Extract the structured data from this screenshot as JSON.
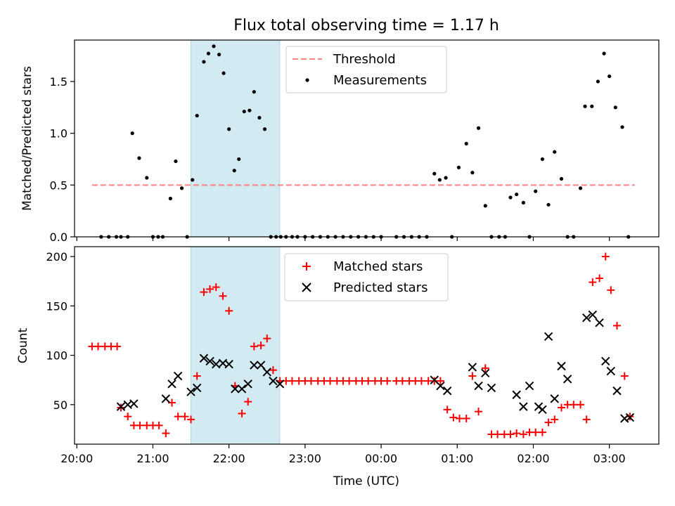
{
  "title": "Flux total observing time = 1.17 h",
  "xlabel": "Time (UTC)",
  "x_tick_labels": [
    "20:00",
    "21:00",
    "22:00",
    "23:00",
    "00:00",
    "01:00",
    "02:00",
    "03:00"
  ],
  "colors": {
    "threshold": "#ff8080",
    "measurement": "#000000",
    "matched": "#ff0000",
    "predicted": "#000000",
    "shade": "#add8e6"
  },
  "chart_data": [
    {
      "type": "scatter",
      "ylabel": "Matched/Predicted stars",
      "ylim": [
        0,
        1.9
      ],
      "y_ticks": [
        0.0,
        0.5,
        1.0,
        1.5
      ],
      "y_tick_labels": [
        "0.0",
        "0.5",
        "1.0",
        "1.5"
      ],
      "x_range_hours": [
        19.97,
        27.65
      ],
      "shaded_span": [
        "21:30",
        "22:40"
      ],
      "legend": {
        "position": "top-center",
        "entries": [
          "Threshold",
          "Measurements"
        ]
      },
      "threshold": {
        "name": "Threshold",
        "value": 0.5,
        "x_start": "20:12",
        "x_end": "27:20",
        "style": "dashed"
      },
      "series": [
        {
          "name": "Measurements",
          "x": [
            20.32,
            20.42,
            20.52,
            20.58,
            20.67,
            20.73,
            20.82,
            20.92,
            21.0,
            21.07,
            21.13,
            21.23,
            21.3,
            21.38,
            21.45,
            21.52,
            21.58,
            21.67,
            21.73,
            21.8,
            21.87,
            21.93,
            22.0,
            22.07,
            22.13,
            22.2,
            22.27,
            22.33,
            22.4,
            22.47,
            22.55,
            22.62,
            22.68,
            22.75,
            22.83,
            22.9,
            23.0,
            23.1,
            23.2,
            23.3,
            23.4,
            23.5,
            23.6,
            23.7,
            23.8,
            23.9,
            24.0,
            24.2,
            24.3,
            24.4,
            24.5,
            24.6,
            24.7,
            24.77,
            24.85,
            24.93,
            25.02,
            25.12,
            25.2,
            25.28,
            25.37,
            25.45,
            25.55,
            25.63,
            25.7,
            25.78,
            25.87,
            25.95,
            26.03,
            26.12,
            26.2,
            26.28,
            26.37,
            26.45,
            26.53,
            26.62,
            26.68,
            26.77,
            26.85,
            26.93,
            27.0,
            27.08,
            27.17,
            27.25
          ],
          "y": [
            0,
            0,
            0,
            0,
            0,
            1.0,
            0.76,
            0.57,
            0,
            0,
            0,
            0.37,
            0.73,
            0.47,
            0,
            0.55,
            1.17,
            1.69,
            1.77,
            1.84,
            1.76,
            1.58,
            1.04,
            0.64,
            0.75,
            1.21,
            1.22,
            1.4,
            1.15,
            1.04,
            0,
            0,
            0,
            0,
            0,
            0,
            0,
            0,
            0,
            0,
            0,
            0,
            0,
            0,
            0,
            0,
            0,
            0,
            0,
            0,
            0,
            0,
            0.61,
            0.55,
            0.57,
            0,
            0.67,
            0.9,
            0.62,
            1.05,
            0.3,
            0,
            0,
            0,
            0.38,
            0.41,
            0.33,
            0,
            0.44,
            0.75,
            0.31,
            0.82,
            0.56,
            0,
            0,
            0.47,
            1.26,
            1.26,
            1.5,
            1.77,
            1.55,
            1.25,
            1.06,
            0
          ]
        }
      ]
    },
    {
      "type": "scatter",
      "ylabel": "Count",
      "ylim": [
        10,
        210
      ],
      "y_ticks": [
        50,
        100,
        150,
        200
      ],
      "y_tick_labels": [
        "50",
        "100",
        "150",
        "200"
      ],
      "legend": {
        "position": "top-center",
        "entries": [
          "Matched stars",
          "Predicted stars"
        ]
      },
      "series": [
        {
          "name": "Matched stars",
          "marker": "+",
          "x": [
            20.2,
            20.28,
            20.37,
            20.45,
            20.53,
            20.58,
            20.67,
            20.75,
            20.83,
            20.92,
            21.0,
            21.08,
            21.17,
            21.25,
            21.33,
            21.42,
            21.5,
            21.58,
            21.67,
            21.75,
            21.83,
            21.92,
            22.0,
            22.08,
            22.17,
            22.25,
            22.33,
            22.42,
            22.5,
            22.58,
            22.67,
            22.75,
            22.83,
            22.92,
            23.0,
            23.08,
            23.17,
            23.25,
            23.33,
            23.42,
            23.5,
            23.58,
            23.67,
            23.75,
            23.83,
            23.92,
            24.0,
            24.08,
            24.2,
            24.28,
            24.37,
            24.45,
            24.53,
            24.62,
            24.7,
            24.78,
            24.87,
            24.95,
            25.03,
            25.12,
            25.2,
            25.28,
            25.37,
            25.45,
            25.53,
            25.62,
            25.7,
            25.78,
            25.87,
            25.95,
            26.03,
            26.12,
            26.2,
            26.28,
            26.37,
            26.45,
            26.53,
            26.62,
            26.7,
            26.78,
            26.87,
            26.95,
            27.02,
            27.1,
            27.2,
            27.27
          ],
          "y": [
            109,
            109,
            109,
            109,
            109,
            47,
            38,
            29,
            29,
            29,
            29,
            29,
            21,
            52,
            38,
            38,
            35,
            79,
            164,
            167,
            169,
            160,
            145,
            69,
            41,
            53,
            109,
            110,
            117,
            85,
            74,
            74,
            74,
            74,
            74,
            74,
            74,
            74,
            74,
            74,
            74,
            74,
            74,
            74,
            74,
            74,
            74,
            74,
            74,
            74,
            74,
            74,
            74,
            74,
            74,
            74,
            45,
            37,
            36,
            36,
            79,
            43,
            87,
            20,
            20,
            20,
            20,
            21,
            20,
            22,
            22,
            22,
            32,
            35,
            47,
            50,
            50,
            50,
            35,
            174,
            178,
            200,
            166,
            130,
            79,
            38
          ]
        },
        {
          "name": "Predicted stars",
          "marker": "x",
          "x": [
            20.58,
            20.67,
            20.75,
            21.17,
            21.25,
            21.33,
            21.5,
            21.58,
            21.67,
            21.75,
            21.83,
            21.92,
            22.0,
            22.08,
            22.17,
            22.25,
            22.33,
            22.42,
            22.5,
            22.58,
            22.67,
            24.7,
            24.78,
            24.87,
            25.2,
            25.28,
            25.37,
            25.45,
            25.78,
            25.87,
            25.95,
            26.07,
            26.12,
            26.2,
            26.28,
            26.37,
            26.45,
            26.7,
            26.78,
            26.87,
            26.95,
            27.02,
            27.1,
            27.2,
            27.27
          ],
          "y": [
            48,
            50,
            51,
            56,
            71,
            79,
            63,
            67,
            97,
            94,
            91,
            92,
            91,
            66,
            66,
            71,
            90,
            90,
            83,
            74,
            71,
            75,
            69,
            64,
            88,
            69,
            82,
            67,
            60,
            48,
            69,
            48,
            45,
            119,
            56,
            89,
            76,
            138,
            141,
            133,
            94,
            84,
            64,
            36,
            37
          ]
        }
      ]
    }
  ]
}
